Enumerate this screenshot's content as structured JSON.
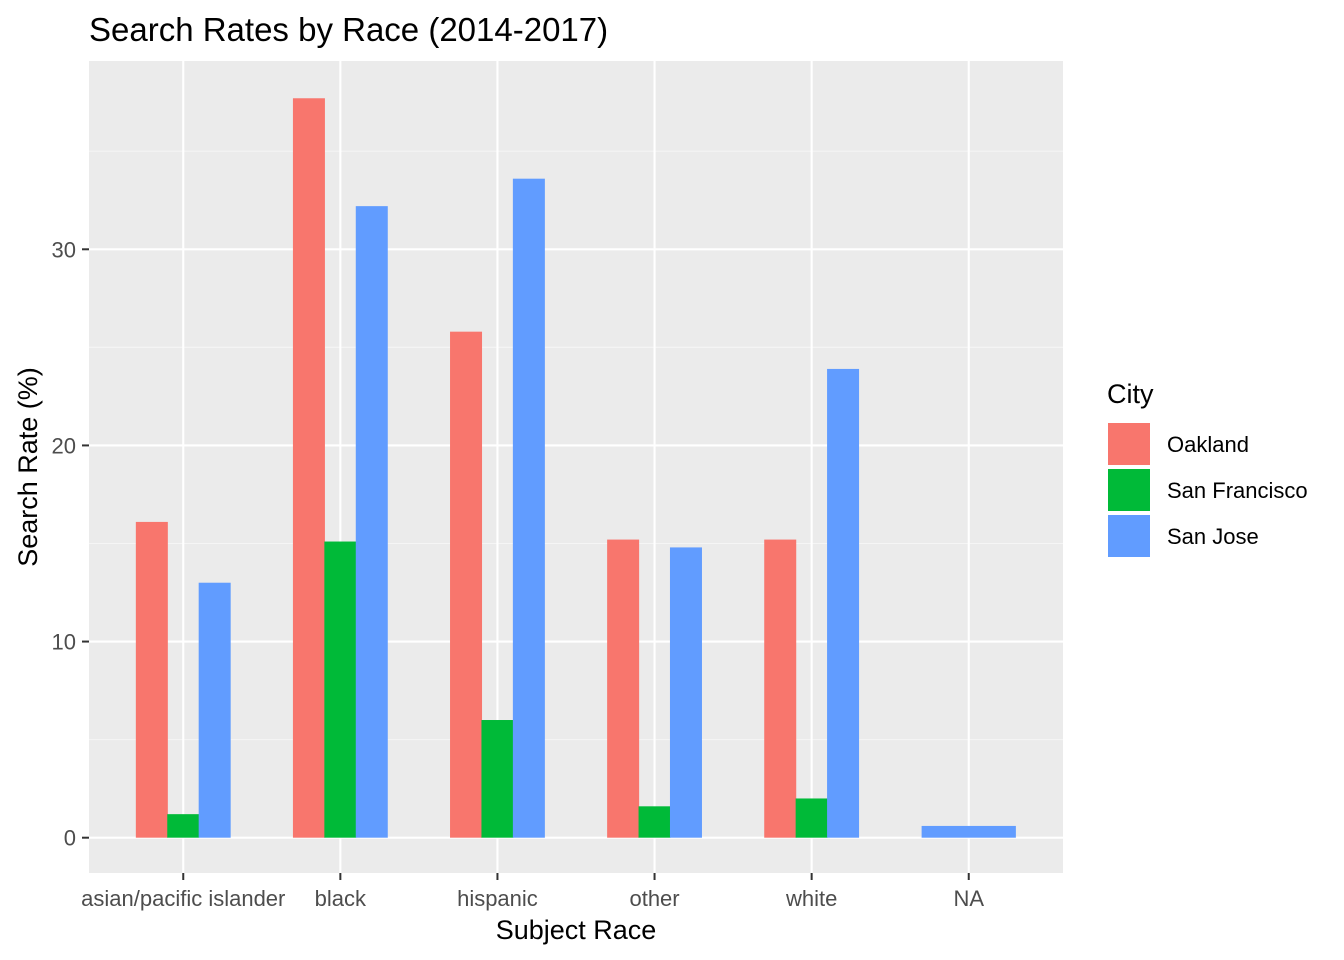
{
  "chart_data": {
    "type": "bar",
    "title": "Search Rates by Race (2014-2017)",
    "xlabel": "Subject Race",
    "ylabel": "Search Rate (%)",
    "categories": [
      "asian/pacific islander",
      "black",
      "hispanic",
      "other",
      "white",
      "NA"
    ],
    "yticks": [
      0,
      10,
      20,
      30
    ],
    "ylim": [
      -1.8,
      39.6
    ],
    "grid": true,
    "legend": {
      "title": "City",
      "position": "right"
    },
    "series": [
      {
        "name": "Oakland",
        "color": "#F8766D",
        "values": [
          16.1,
          37.7,
          25.8,
          15.2,
          15.2,
          null
        ]
      },
      {
        "name": "San Francisco",
        "color": "#00BA38",
        "values": [
          1.2,
          15.1,
          6.0,
          1.6,
          2.0,
          null
        ]
      },
      {
        "name": "San Jose",
        "color": "#619CFF",
        "values": [
          13.0,
          32.2,
          33.6,
          14.8,
          23.9,
          0.6
        ]
      }
    ],
    "colors": {
      "panel_background": "#EBEBEB",
      "grid_major": "#FFFFFF",
      "grid_minor": "#F5F5F5",
      "tick_text": "#4D4D4D"
    }
  }
}
